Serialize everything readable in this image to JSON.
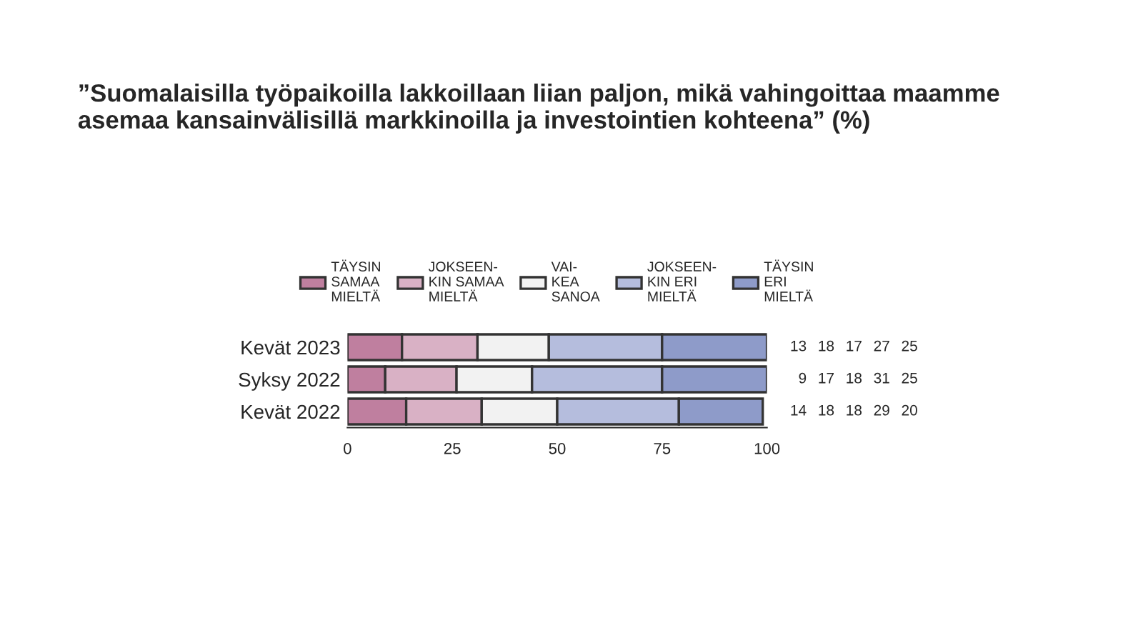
{
  "chart_data": {
    "type": "bar",
    "orientation": "horizontal",
    "stacked": true,
    "title": "”Suomalaisilla työpaikoilla lakkoillaan liian paljon, mikä vahingoittaa maamme\nasemaa kansainvälisillä markkinoilla ja investointien kohteena” (%)",
    "categories": [
      "Kevät 2023",
      "Syksy 2022",
      "Kevät 2022"
    ],
    "series": [
      {
        "name": "TÄYSIN\nSAMAA\nMIELTÄ",
        "color": "#bf7f9f",
        "values": [
          13,
          9,
          14
        ]
      },
      {
        "name": "JOKSEEN-\nKIN SAMAA\nMIELTÄ",
        "color": "#d9b1c5",
        "values": [
          18,
          17,
          18
        ]
      },
      {
        "name": "VAI-\nKEA\nSANOA",
        "color": "#f2f2f2",
        "values": [
          17,
          18,
          18
        ]
      },
      {
        "name": "JOKSEEN-\nKIN ERI\nMIELTÄ",
        "color": "#b5bddd",
        "values": [
          27,
          31,
          29
        ]
      },
      {
        "name": "TÄYSIN\nERI\nMIELTÄ",
        "color": "#8e9bc9",
        "values": [
          25,
          25,
          20
        ]
      }
    ],
    "xlim": [
      0,
      100
    ],
    "xticks": [
      0,
      25,
      50,
      75,
      100
    ],
    "data_labels": true,
    "legend": "top",
    "grid": false
  }
}
